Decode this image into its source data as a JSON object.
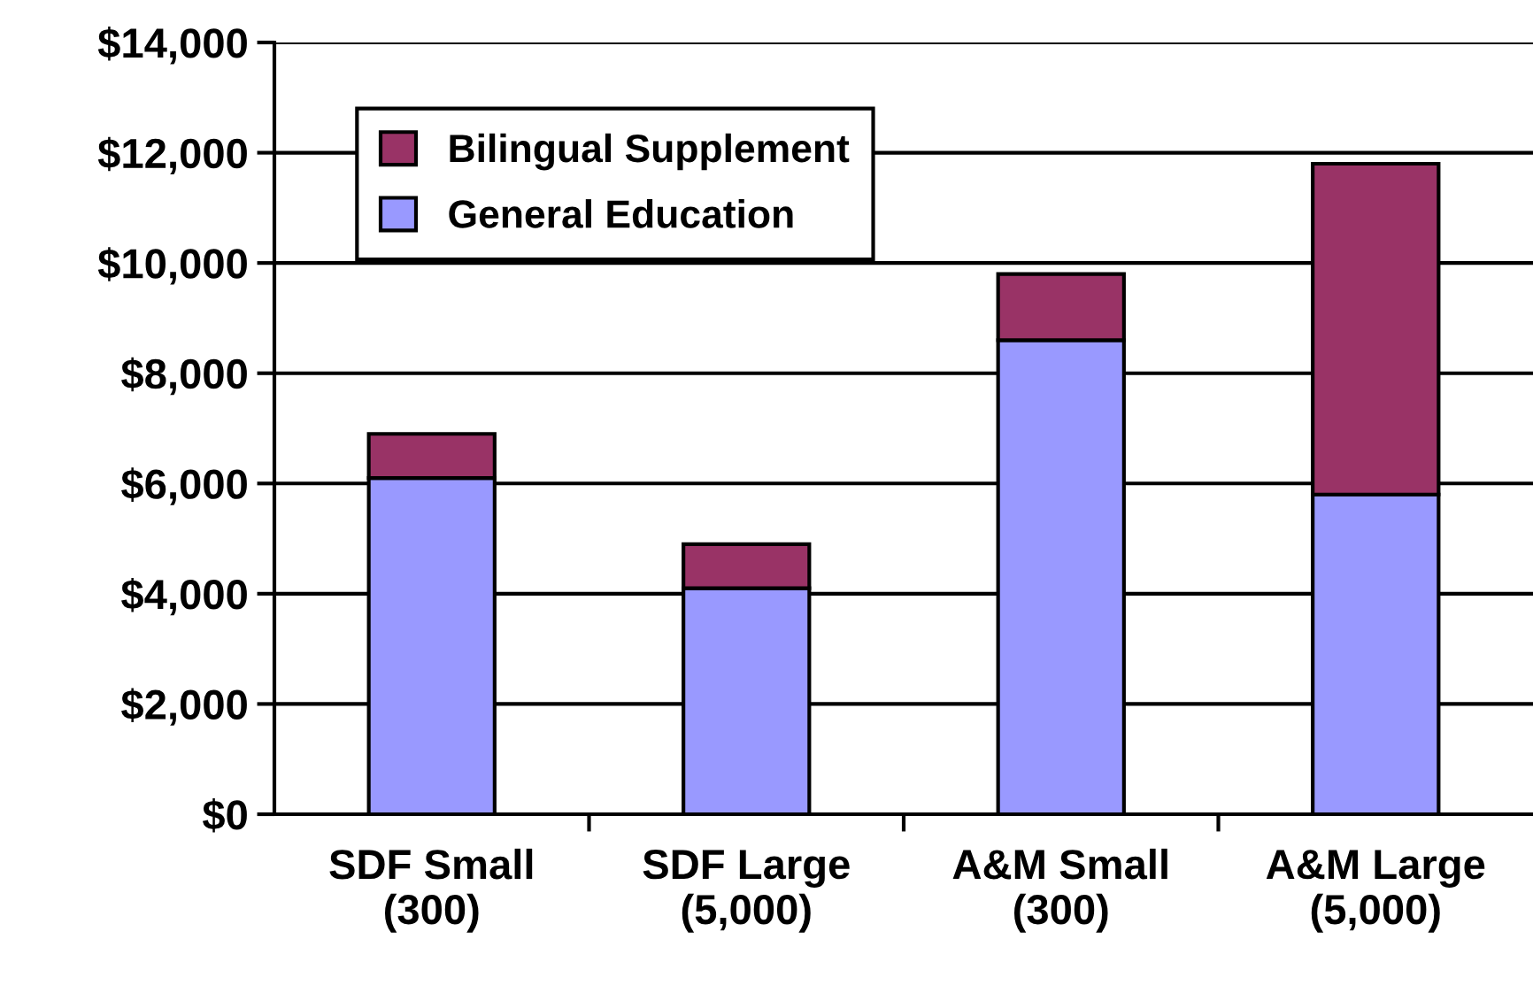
{
  "chart_data": {
    "type": "bar",
    "stacked": true,
    "categories": [
      "SDF Small\n(300)",
      "SDF Large\n(5,000)",
      "A&M Small\n(300)",
      "A&M Large\n(5,000)"
    ],
    "series": [
      {
        "name": "General Education",
        "color": "#9999ff",
        "values": [
          6100,
          4100,
          8600,
          5800
        ]
      },
      {
        "name": "Bilingual Supplement",
        "color": "#993366",
        "values": [
          800,
          800,
          1200,
          6000
        ]
      }
    ],
    "ylim": [
      0,
      14000
    ],
    "yticks": [
      {
        "value": 0,
        "label": "$0"
      },
      {
        "value": 2000,
        "label": "$2,000"
      },
      {
        "value": 4000,
        "label": "$4,000"
      },
      {
        "value": 6000,
        "label": "$6,000"
      },
      {
        "value": 8000,
        "label": "$8,000"
      },
      {
        "value": 10000,
        "label": "$10,000"
      },
      {
        "value": 12000,
        "label": "$12,000"
      },
      {
        "value": 14000,
        "label": "$14,000"
      }
    ],
    "grid": "y",
    "legend": "top left"
  }
}
